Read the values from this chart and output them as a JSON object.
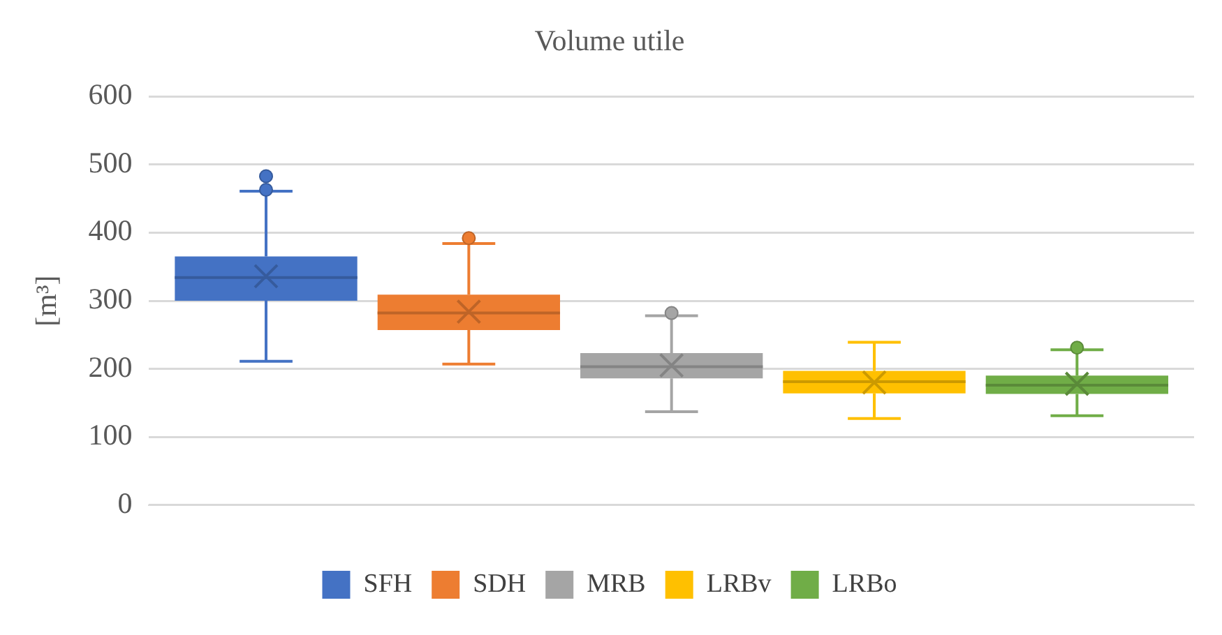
{
  "chart_data": {
    "type": "box",
    "title": "Volume utile",
    "ylabel": "[m³]",
    "categories": [
      null
    ],
    "series": [
      {
        "name": "SFH",
        "color": "#4472c4",
        "boxes": [
          {
            "low": 211,
            "q1": 300,
            "median": 334,
            "q3": 365,
            "high": 461,
            "mean": 336,
            "outliers": [
              463,
              483
            ]
          }
        ]
      },
      {
        "name": "SDH",
        "color": "#ed7d31",
        "boxes": [
          {
            "low": 207,
            "q1": 257,
            "median": 282,
            "q3": 309,
            "high": 384,
            "mean": 284,
            "outliers": [
              392
            ]
          }
        ]
      },
      {
        "name": "MRB",
        "color": "#a5a5a5",
        "boxes": [
          {
            "low": 137,
            "q1": 186,
            "median": 203,
            "q3": 223,
            "high": 278,
            "mean": 205,
            "outliers": [
              282
            ]
          }
        ]
      },
      {
        "name": "LRBv",
        "color": "#ffc000",
        "boxes": [
          {
            "low": 127,
            "q1": 164,
            "median": 181,
            "q3": 197,
            "high": 239,
            "mean": 180
          }
        ]
      },
      {
        "name": "LRBo",
        "color": "#70ad47",
        "boxes": [
          {
            "low": 131,
            "q1": 163,
            "median": 176,
            "q3": 190,
            "high": 228,
            "mean": 178,
            "outliers": [
              231
            ]
          }
        ]
      }
    ],
    "ylim": [
      0,
      600
    ],
    "yticks": [
      0,
      100,
      200,
      300,
      400,
      500,
      600
    ],
    "grid": "y",
    "legend": "bottom"
  }
}
